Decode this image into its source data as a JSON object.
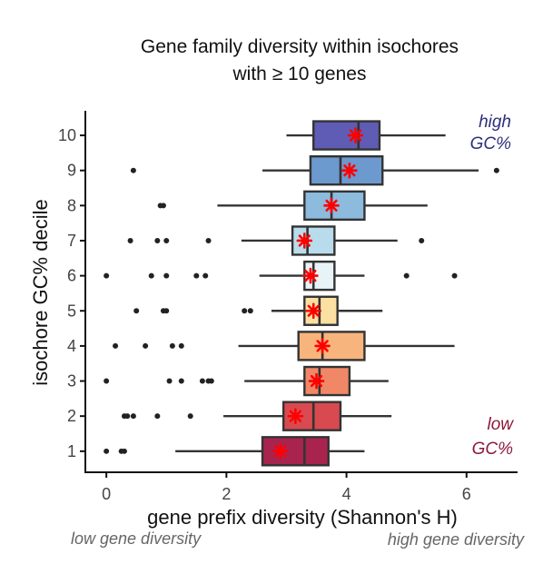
{
  "chart_data": {
    "type": "boxplot",
    "orientation": "horizontal",
    "title_lines": [
      "Gene family diversity within isochores",
      "with ≥ 10 genes"
    ],
    "xlabel": "gene prefix diversity (Shannon's H)",
    "ylabel": "isochore GC% decile",
    "xlim": [
      -0.35,
      6.85
    ],
    "ylim": [
      0.4,
      10.7
    ],
    "xticks": [
      0,
      2,
      4,
      6
    ],
    "yticks": [
      1,
      2,
      3,
      4,
      5,
      6,
      7,
      8,
      9,
      10
    ],
    "grid": false,
    "annotations": {
      "high_gc": [
        "high",
        "GC%"
      ],
      "low_gc": [
        "low",
        "GC%"
      ],
      "low_div": "low gene diversity",
      "high_div": "high gene diversity"
    },
    "colors": {
      "high_label": "#2e2e7e",
      "low_label": "#8b1a3c",
      "mean_marker": "#ff0000",
      "box_stroke": "#333333",
      "annotation_gray": "#666666"
    },
    "series": [
      {
        "decile": 1,
        "fill": "#a8244f",
        "whisker_low": 1.15,
        "q1": 2.6,
        "median": 3.3,
        "q3": 3.7,
        "whisker_high": 4.3,
        "mean": 2.9,
        "outliers": [
          0.0,
          0.25,
          0.3
        ]
      },
      {
        "decile": 2,
        "fill": "#d84a50",
        "whisker_low": 1.95,
        "q1": 2.95,
        "median": 3.45,
        "q3": 3.9,
        "whisker_high": 4.75,
        "mean": 3.15,
        "outliers": [
          0.3,
          0.35,
          0.45,
          0.85,
          1.4
        ]
      },
      {
        "decile": 3,
        "fill": "#f08868",
        "whisker_low": 2.3,
        "q1": 3.3,
        "median": 3.55,
        "q3": 4.05,
        "whisker_high": 4.7,
        "mean": 3.5,
        "outliers": [
          0.0,
          1.05,
          1.25,
          1.6,
          1.7,
          1.75
        ]
      },
      {
        "decile": 4,
        "fill": "#f7b47c",
        "whisker_low": 2.2,
        "q1": 3.2,
        "median": 3.6,
        "q3": 4.3,
        "whisker_high": 5.8,
        "mean": 3.6,
        "outliers": [
          0.15,
          0.65,
          1.1,
          1.25
        ]
      },
      {
        "decile": 5,
        "fill": "#fce0a2",
        "whisker_low": 2.75,
        "q1": 3.3,
        "median": 3.55,
        "q3": 3.85,
        "whisker_high": 4.6,
        "mean": 3.45,
        "outliers": [
          0.5,
          0.95,
          1.0,
          2.3,
          2.4
        ]
      },
      {
        "decile": 6,
        "fill": "#e8f3f7",
        "whisker_low": 2.55,
        "q1": 3.3,
        "median": 3.45,
        "q3": 3.8,
        "whisker_high": 4.3,
        "mean": 3.4,
        "outliers": [
          0.0,
          0.75,
          1.0,
          1.5,
          1.65,
          5.0,
          5.8
        ]
      },
      {
        "decile": 7,
        "fill": "#b8dceb",
        "whisker_low": 2.25,
        "q1": 3.1,
        "median": 3.35,
        "q3": 3.8,
        "whisker_high": 4.85,
        "mean": 3.3,
        "outliers": [
          0.4,
          0.85,
          1.0,
          1.7,
          5.25
        ]
      },
      {
        "decile": 8,
        "fill": "#8dbbdd",
        "whisker_low": 1.85,
        "q1": 3.3,
        "median": 3.75,
        "q3": 4.3,
        "whisker_high": 5.35,
        "mean": 3.75,
        "outliers": [
          0.9,
          0.95
        ]
      },
      {
        "decile": 9,
        "fill": "#6c99ce",
        "whisker_low": 2.6,
        "q1": 3.4,
        "median": 3.9,
        "q3": 4.6,
        "whisker_high": 6.2,
        "mean": 4.05,
        "outliers": [
          0.45,
          6.5
        ]
      },
      {
        "decile": 10,
        "fill": "#5e5cb5",
        "whisker_low": 3.0,
        "q1": 3.45,
        "median": 4.2,
        "q3": 4.55,
        "whisker_high": 5.65,
        "mean": 4.15,
        "outliers": []
      }
    ]
  }
}
